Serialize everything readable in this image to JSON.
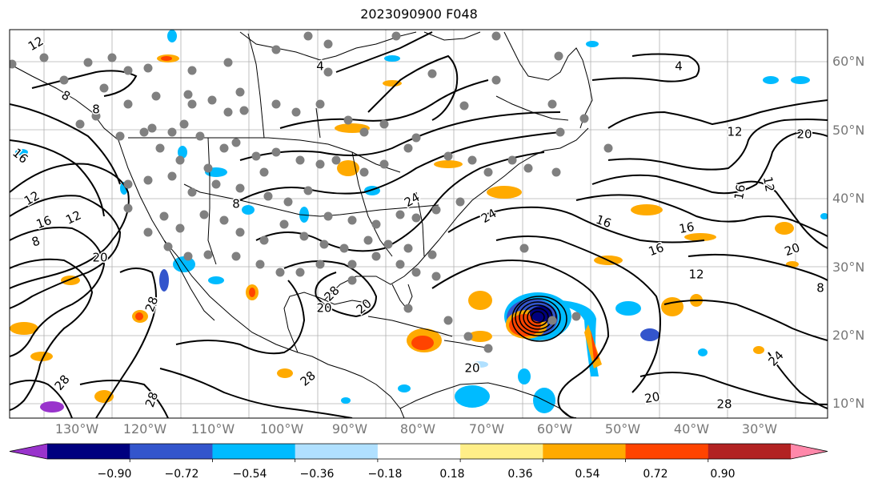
{
  "title": "2023090900 F048",
  "map": {
    "lat_labels": [
      "60°N",
      "50°N",
      "40°N",
      "30°N",
      "20°N",
      "10°N"
    ],
    "lon_labels": [
      "130°W",
      "120°W",
      "110°W",
      "100°W",
      "90°W",
      "80°W",
      "70°W",
      "60°W",
      "50°W",
      "40°W",
      "30°W"
    ]
  },
  "colorbar": {
    "colors": [
      "#9933cc",
      "#00007f",
      "#3355cc",
      "#00bbff",
      "#b0e0ff",
      "#ffffff",
      "#ffee88",
      "#ffaa00",
      "#ff4400",
      "#b22222",
      "#ff88aa"
    ],
    "labels": [
      "−0.90",
      "−0.72",
      "−0.54",
      "−0.36",
      "−0.18",
      "0.18",
      "0.36",
      "0.54",
      "0.72",
      "0.90"
    ]
  },
  "contour_labels": [
    {
      "text": "12"
    },
    {
      "text": "16"
    },
    {
      "text": "12"
    },
    {
      "text": "8"
    },
    {
      "text": "16"
    },
    {
      "text": "12"
    },
    {
      "text": "8"
    },
    {
      "text": "20"
    },
    {
      "text": "28"
    },
    {
      "text": "28"
    },
    {
      "text": "20"
    },
    {
      "text": "20"
    },
    {
      "text": "24"
    },
    {
      "text": "20"
    },
    {
      "text": "16"
    },
    {
      "text": "16"
    },
    {
      "text": "12"
    },
    {
      "text": "20"
    },
    {
      "text": "16"
    },
    {
      "text": "20"
    },
    {
      "text": "16"
    },
    {
      "text": "12"
    },
    {
      "text": "12"
    },
    {
      "text": "8"
    },
    {
      "text": "20"
    },
    {
      "text": "24"
    },
    {
      "text": "28"
    },
    {
      "text": "24"
    },
    {
      "text": "28"
    },
    {
      "text": "28"
    },
    {
      "text": "28"
    },
    {
      "text": "4"
    },
    {
      "text": "8"
    },
    {
      "text": "4"
    },
    {
      "text": "8"
    }
  ]
}
